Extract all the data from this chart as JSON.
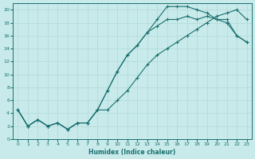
{
  "title": "",
  "xlabel": "Humidex (Indice chaleur)",
  "bg_color": "#c8eaea",
  "line_color": "#1a7070",
  "grid_color": "#b0d8d8",
  "xlim": [
    -0.5,
    23.5
  ],
  "ylim": [
    0,
    21
  ],
  "xticks": [
    0,
    1,
    2,
    3,
    4,
    5,
    6,
    7,
    8,
    9,
    10,
    11,
    12,
    13,
    14,
    15,
    16,
    17,
    18,
    19,
    20,
    21,
    22,
    23
  ],
  "yticks": [
    0,
    2,
    4,
    6,
    8,
    10,
    12,
    14,
    16,
    18,
    20
  ],
  "s_upper_x": [
    0,
    1,
    2,
    3,
    4,
    5,
    6,
    7,
    8,
    9,
    10,
    11,
    12,
    13,
    14,
    15,
    16,
    17,
    18,
    19,
    20,
    21,
    22,
    23
  ],
  "s_upper_y": [
    4.5,
    2.0,
    3.0,
    2.0,
    2.5,
    1.5,
    2.5,
    2.5,
    4.5,
    7.5,
    10.5,
    13.0,
    14.5,
    16.5,
    18.5,
    20.5,
    20.5,
    20.5,
    20.0,
    19.5,
    18.5,
    18.5,
    16.0,
    15.0
  ],
  "s_mid_x": [
    0,
    1,
    2,
    3,
    4,
    5,
    6,
    7,
    8,
    9,
    10,
    11,
    12,
    13,
    14,
    15,
    16,
    17,
    18,
    19,
    20,
    21,
    22,
    23
  ],
  "s_mid_y": [
    4.5,
    2.0,
    3.0,
    2.0,
    2.5,
    1.5,
    2.5,
    2.5,
    4.5,
    7.5,
    10.5,
    13.0,
    14.5,
    16.5,
    17.5,
    18.5,
    18.5,
    19.0,
    18.5,
    19.0,
    18.5,
    18.0,
    16.0,
    15.0
  ],
  "s_low_x": [
    0,
    1,
    2,
    3,
    4,
    5,
    6,
    7,
    8,
    9,
    10,
    11,
    12,
    13,
    14,
    15,
    16,
    17,
    18,
    19,
    20,
    21,
    22,
    23
  ],
  "s_low_y": [
    4.5,
    2.0,
    3.0,
    2.0,
    2.5,
    1.5,
    2.5,
    2.5,
    4.5,
    4.5,
    6.0,
    7.5,
    9.5,
    11.5,
    13.0,
    14.0,
    15.0,
    16.0,
    17.0,
    18.0,
    19.0,
    19.5,
    20.0,
    18.5
  ]
}
